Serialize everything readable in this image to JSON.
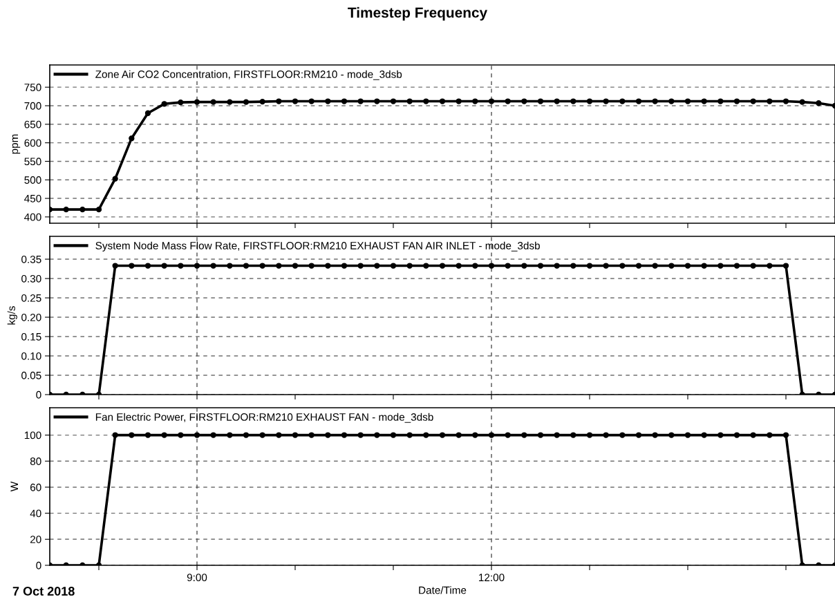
{
  "chart_data": [
    {
      "type": "line",
      "title": "Timestep Frequency",
      "ylabel": "ppm",
      "legend": "top left",
      "grid": true,
      "marker": "circle",
      "line_style": "solid",
      "tick_labels": "y",
      "x": [
        "2018-10-07T07:30",
        "2018-10-07T07:40",
        "2018-10-07T07:50",
        "2018-10-07T08:00",
        "2018-10-07T08:10",
        "2018-10-07T08:20",
        "2018-10-07T08:30",
        "2018-10-07T08:40",
        "2018-10-07T08:50",
        "2018-10-07T09:00",
        "2018-10-07T09:10",
        "2018-10-07T09:20",
        "2018-10-07T09:30",
        "2018-10-07T09:40",
        "2018-10-07T09:50",
        "2018-10-07T10:00",
        "2018-10-07T10:10",
        "2018-10-07T10:20",
        "2018-10-07T10:30",
        "2018-10-07T10:40",
        "2018-10-07T10:50",
        "2018-10-07T11:00",
        "2018-10-07T11:10",
        "2018-10-07T11:20",
        "2018-10-07T11:30",
        "2018-10-07T11:40",
        "2018-10-07T11:50",
        "2018-10-07T12:00",
        "2018-10-07T12:10",
        "2018-10-07T12:20",
        "2018-10-07T12:30",
        "2018-10-07T12:40",
        "2018-10-07T12:50",
        "2018-10-07T13:00",
        "2018-10-07T13:10",
        "2018-10-07T13:20",
        "2018-10-07T13:30",
        "2018-10-07T13:40",
        "2018-10-07T13:50",
        "2018-10-07T14:00",
        "2018-10-07T14:10",
        "2018-10-07T14:20",
        "2018-10-07T14:30",
        "2018-10-07T14:40",
        "2018-10-07T14:50",
        "2018-10-07T15:00",
        "2018-10-07T15:10",
        "2018-10-07T15:20",
        "2018-10-07T15:30"
      ],
      "xlim": [
        "2018-10-07T07:30",
        "2018-10-07T15:30"
      ],
      "xticks": [
        {
          "value": "2018-10-07T08:00",
          "label": null
        },
        {
          "value": "2018-10-07T09:00",
          "label": null
        },
        {
          "value": "2018-10-07T10:00",
          "label": null
        },
        {
          "value": "2018-10-07T11:00",
          "label": null
        },
        {
          "value": "2018-10-07T12:00",
          "label": null
        },
        {
          "value": "2018-10-07T13:00",
          "label": null
        },
        {
          "value": "2018-10-07T14:00",
          "label": null
        },
        {
          "value": "2018-10-07T15:00",
          "label": null
        }
      ],
      "ylim": [
        383,
        810
      ],
      "yticks": [
        400,
        450,
        500,
        550,
        600,
        650,
        700,
        750
      ],
      "series": [
        {
          "name": "Zone Air CO2 Concentration, FIRSTFLOOR:RM210 - mode_3dsb",
          "color": "#000000",
          "values": [
            420,
            420,
            420,
            420,
            503,
            612,
            680,
            705,
            709,
            710,
            710,
            710,
            710,
            711,
            712,
            712,
            712,
            712,
            712,
            712,
            712,
            712,
            712,
            712,
            712,
            712,
            712,
            712,
            712,
            712,
            712,
            712,
            712,
            712,
            712,
            712,
            712,
            712,
            712,
            712,
            712,
            712,
            712,
            712,
            712,
            712,
            710,
            707,
            700
          ]
        }
      ]
    },
    {
      "type": "line",
      "ylabel": "kg/s",
      "legend": "top left",
      "grid": true,
      "marker": "circle",
      "line_style": "solid",
      "tick_labels": "y",
      "x": [
        "2018-10-07T07:30",
        "2018-10-07T07:40",
        "2018-10-07T07:50",
        "2018-10-07T08:00",
        "2018-10-07T08:10",
        "2018-10-07T08:20",
        "2018-10-07T08:30",
        "2018-10-07T08:40",
        "2018-10-07T08:50",
        "2018-10-07T09:00",
        "2018-10-07T09:10",
        "2018-10-07T09:20",
        "2018-10-07T09:30",
        "2018-10-07T09:40",
        "2018-10-07T09:50",
        "2018-10-07T10:00",
        "2018-10-07T10:10",
        "2018-10-07T10:20",
        "2018-10-07T10:30",
        "2018-10-07T10:40",
        "2018-10-07T10:50",
        "2018-10-07T11:00",
        "2018-10-07T11:10",
        "2018-10-07T11:20",
        "2018-10-07T11:30",
        "2018-10-07T11:40",
        "2018-10-07T11:50",
        "2018-10-07T12:00",
        "2018-10-07T12:10",
        "2018-10-07T12:20",
        "2018-10-07T12:30",
        "2018-10-07T12:40",
        "2018-10-07T12:50",
        "2018-10-07T13:00",
        "2018-10-07T13:10",
        "2018-10-07T13:20",
        "2018-10-07T13:30",
        "2018-10-07T13:40",
        "2018-10-07T13:50",
        "2018-10-07T14:00",
        "2018-10-07T14:10",
        "2018-10-07T14:20",
        "2018-10-07T14:30",
        "2018-10-07T14:40",
        "2018-10-07T14:50",
        "2018-10-07T15:00",
        "2018-10-07T15:10",
        "2018-10-07T15:20",
        "2018-10-07T15:30"
      ],
      "xlim": [
        "2018-10-07T07:30",
        "2018-10-07T15:30"
      ],
      "xticks": [
        {
          "value": "2018-10-07T08:00",
          "label": null
        },
        {
          "value": "2018-10-07T09:00",
          "label": null
        },
        {
          "value": "2018-10-07T10:00",
          "label": null
        },
        {
          "value": "2018-10-07T11:00",
          "label": null
        },
        {
          "value": "2018-10-07T12:00",
          "label": null
        },
        {
          "value": "2018-10-07T13:00",
          "label": null
        },
        {
          "value": "2018-10-07T14:00",
          "label": null
        },
        {
          "value": "2018-10-07T15:00",
          "label": null
        }
      ],
      "ylim": [
        0,
        0.409
      ],
      "yticks": [
        0,
        {
          "value": 0.05,
          "label": "0.05"
        },
        {
          "value": 0.1,
          "label": "0.10"
        },
        {
          "value": 0.15,
          "label": "0.15"
        },
        {
          "value": 0.2,
          "label": "0.20"
        },
        {
          "value": 0.25,
          "label": "0.25"
        },
        {
          "value": 0.3,
          "label": "0.30"
        },
        {
          "value": 0.35,
          "label": "0.35"
        }
      ],
      "series": [
        {
          "name": "System Node Mass Flow Rate, FIRSTFLOOR:RM210 EXHAUST FAN AIR INLET - mode_3dsb",
          "color": "#000000",
          "values": [
            0,
            0,
            0,
            0,
            0.333,
            0.333,
            0.333,
            0.333,
            0.333,
            0.333,
            0.333,
            0.333,
            0.333,
            0.333,
            0.333,
            0.333,
            0.333,
            0.333,
            0.333,
            0.333,
            0.333,
            0.333,
            0.333,
            0.333,
            0.333,
            0.333,
            0.333,
            0.333,
            0.333,
            0.333,
            0.333,
            0.333,
            0.333,
            0.333,
            0.333,
            0.333,
            0.333,
            0.333,
            0.333,
            0.333,
            0.333,
            0.333,
            0.333,
            0.333,
            0.333,
            0.333,
            0,
            0,
            0
          ]
        }
      ]
    },
    {
      "type": "line",
      "xlabel": "Date/Time",
      "ylabel": "W",
      "legend": "top left",
      "grid": true,
      "marker": "circle",
      "line_style": "solid",
      "annotations": [
        "7 Oct 2018"
      ],
      "x": [
        "2018-10-07T07:30",
        "2018-10-07T07:40",
        "2018-10-07T07:50",
        "2018-10-07T08:00",
        "2018-10-07T08:10",
        "2018-10-07T08:20",
        "2018-10-07T08:30",
        "2018-10-07T08:40",
        "2018-10-07T08:50",
        "2018-10-07T09:00",
        "2018-10-07T09:10",
        "2018-10-07T09:20",
        "2018-10-07T09:30",
        "2018-10-07T09:40",
        "2018-10-07T09:50",
        "2018-10-07T10:00",
        "2018-10-07T10:10",
        "2018-10-07T10:20",
        "2018-10-07T10:30",
        "2018-10-07T10:40",
        "2018-10-07T10:50",
        "2018-10-07T11:00",
        "2018-10-07T11:10",
        "2018-10-07T11:20",
        "2018-10-07T11:30",
        "2018-10-07T11:40",
        "2018-10-07T11:50",
        "2018-10-07T12:00",
        "2018-10-07T12:10",
        "2018-10-07T12:20",
        "2018-10-07T12:30",
        "2018-10-07T12:40",
        "2018-10-07T12:50",
        "2018-10-07T13:00",
        "2018-10-07T13:10",
        "2018-10-07T13:20",
        "2018-10-07T13:30",
        "2018-10-07T13:40",
        "2018-10-07T13:50",
        "2018-10-07T14:00",
        "2018-10-07T14:10",
        "2018-10-07T14:20",
        "2018-10-07T14:30",
        "2018-10-07T14:40",
        "2018-10-07T14:50",
        "2018-10-07T15:00",
        "2018-10-07T15:10",
        "2018-10-07T15:20",
        "2018-10-07T15:30"
      ],
      "xlim": [
        "2018-10-07T07:30",
        "2018-10-07T15:30"
      ],
      "xticks": [
        {
          "value": "2018-10-07T08:00",
          "label": null
        },
        {
          "value": "2018-10-07T09:00",
          "label": "9:00"
        },
        {
          "value": "2018-10-07T10:00",
          "label": null
        },
        {
          "value": "2018-10-07T11:00",
          "label": null
        },
        {
          "value": "2018-10-07T12:00",
          "label": "12:00"
        },
        {
          "value": "2018-10-07T13:00",
          "label": null
        },
        {
          "value": "2018-10-07T14:00",
          "label": null
        },
        {
          "value": "2018-10-07T15:00",
          "label": null
        }
      ],
      "ylim": [
        0,
        121
      ],
      "yticks": [
        0,
        20,
        40,
        60,
        80,
        100
      ],
      "series": [
        {
          "name": "Fan Electric Power, FIRSTFLOOR:RM210 EXHAUST FAN - mode_3dsb",
          "color": "#000000",
          "values": [
            0,
            0,
            0,
            0,
            100,
            100,
            100,
            100,
            100,
            100,
            100,
            100,
            100,
            100,
            100,
            100,
            100,
            100,
            100,
            100,
            100,
            100,
            100,
            100,
            100,
            100,
            100,
            100,
            100,
            100,
            100,
            100,
            100,
            100,
            100,
            100,
            100,
            100,
            100,
            100,
            100,
            100,
            100,
            100,
            100,
            100,
            0,
            0,
            0
          ]
        }
      ]
    }
  ]
}
